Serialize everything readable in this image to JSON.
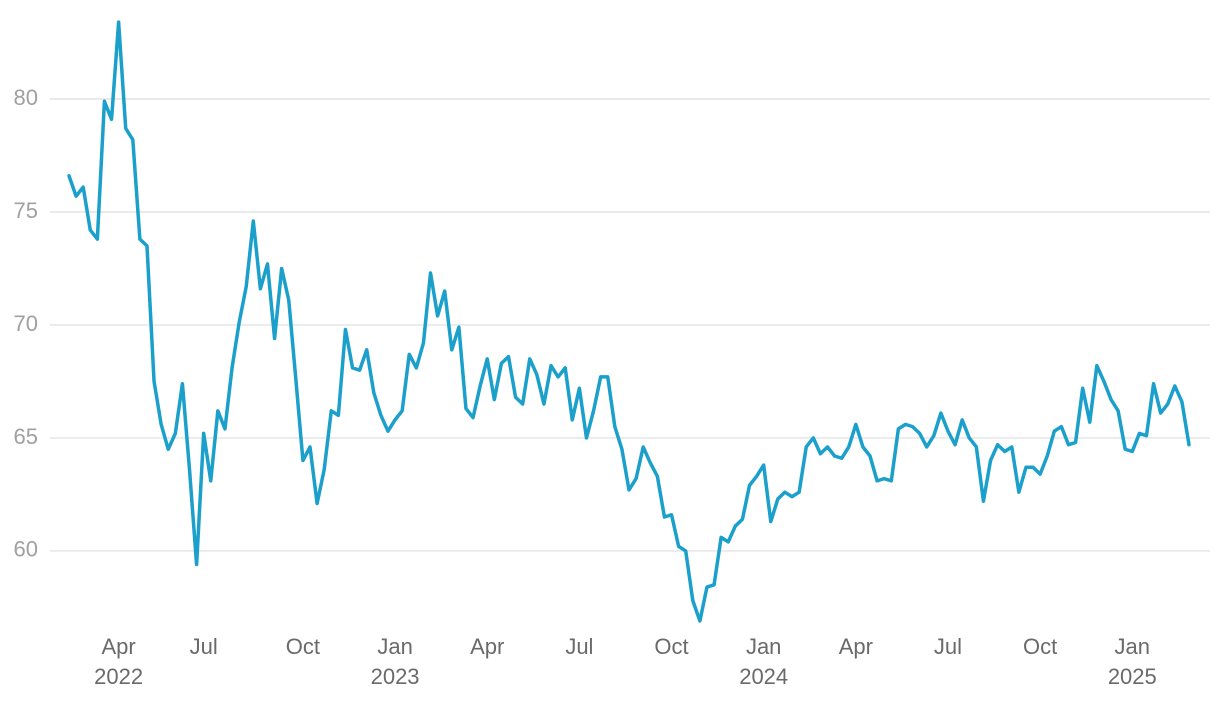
{
  "chart_data": {
    "type": "line",
    "categories": [
      null,
      null,
      null,
      null,
      null,
      null,
      null,
      "Apr 2022",
      null,
      null,
      null,
      null,
      null,
      null,
      null,
      null,
      null,
      null,
      null,
      "Jul",
      null,
      null,
      null,
      null,
      null,
      null,
      null,
      null,
      null,
      null,
      null,
      null,
      null,
      "Oct",
      null,
      null,
      null,
      null,
      null,
      null,
      null,
      null,
      null,
      null,
      null,
      null,
      "Jan 2023",
      null,
      null,
      null,
      null,
      null,
      null,
      null,
      null,
      null,
      null,
      null,
      null,
      "Apr",
      null,
      null,
      null,
      null,
      null,
      null,
      null,
      null,
      null,
      null,
      null,
      null,
      "Jul",
      null,
      null,
      null,
      null,
      null,
      null,
      null,
      null,
      null,
      null,
      null,
      null,
      "Oct",
      null,
      null,
      null,
      null,
      null,
      null,
      null,
      null,
      null,
      null,
      null,
      null,
      "Jan 2024",
      null,
      null,
      null,
      null,
      null,
      null,
      null,
      null,
      null,
      null,
      null,
      null,
      "Apr",
      null,
      null,
      null,
      null,
      null,
      null,
      null,
      null,
      null,
      null,
      null,
      null,
      "Jul",
      null,
      null,
      null,
      null,
      null,
      null,
      null,
      null,
      null,
      null,
      null,
      null,
      "Oct",
      null,
      null,
      null,
      null,
      null,
      null,
      null,
      null,
      null,
      null,
      null,
      null,
      "Jan 2025",
      null,
      null,
      null,
      null,
      null,
      null,
      null,
      null
    ],
    "series": [
      {
        "color": "#1b9fcb",
        "values": [
          76.6,
          75.7,
          76.1,
          74.2,
          73.8,
          79.9,
          79.1,
          83.4,
          78.7,
          78.2,
          73.8,
          73.5,
          67.5,
          65.6,
          64.5,
          65.2,
          67.4,
          63.6,
          59.4,
          65.2,
          63.1,
          66.2,
          65.4,
          68.1,
          70.1,
          71.7,
          74.6,
          71.6,
          72.7,
          69.4,
          72.5,
          71.1,
          67.6,
          64.0,
          64.6,
          62.1,
          63.6,
          66.2,
          66.0,
          69.8,
          68.1,
          68.0,
          68.9,
          67.0,
          66.0,
          65.3,
          65.8,
          66.2,
          68.7,
          68.1,
          69.2,
          72.3,
          70.4,
          71.5,
          68.9,
          69.9,
          66.3,
          65.9,
          67.3,
          68.5,
          66.7,
          68.3,
          68.6,
          66.8,
          66.5,
          68.5,
          67.8,
          66.5,
          68.2,
          67.7,
          68.1,
          65.8,
          67.2,
          65.0,
          66.2,
          67.7,
          67.7,
          65.5,
          64.5,
          62.7,
          63.2,
          64.6,
          63.9,
          63.3,
          61.5,
          61.6,
          60.2,
          60.0,
          57.8,
          56.9,
          58.4,
          58.5,
          60.6,
          60.4,
          61.1,
          61.4,
          62.9,
          63.3,
          63.8,
          61.3,
          62.3,
          62.6,
          62.4,
          62.6,
          64.6,
          65.0,
          64.3,
          64.6,
          64.2,
          64.1,
          64.6,
          65.6,
          64.6,
          64.2,
          63.1,
          63.2,
          63.1,
          65.4,
          65.6,
          65.5,
          65.2,
          64.6,
          65.1,
          66.1,
          65.3,
          64.7,
          65.8,
          65.0,
          64.6,
          62.2,
          64.0,
          64.7,
          64.4,
          64.6,
          62.6,
          63.7,
          63.7,
          63.4,
          64.2,
          65.3,
          65.5,
          64.7,
          64.8,
          67.2,
          65.7,
          68.2,
          67.5,
          66.7,
          66.2,
          64.5,
          64.4,
          65.2,
          65.1,
          67.4,
          66.1,
          66.5,
          67.3,
          66.6,
          64.7
        ]
      }
    ],
    "ylim": [
      56.5,
      83.7
    ],
    "yticks": [
      60,
      65,
      70,
      75,
      80
    ],
    "grid": true
  }
}
